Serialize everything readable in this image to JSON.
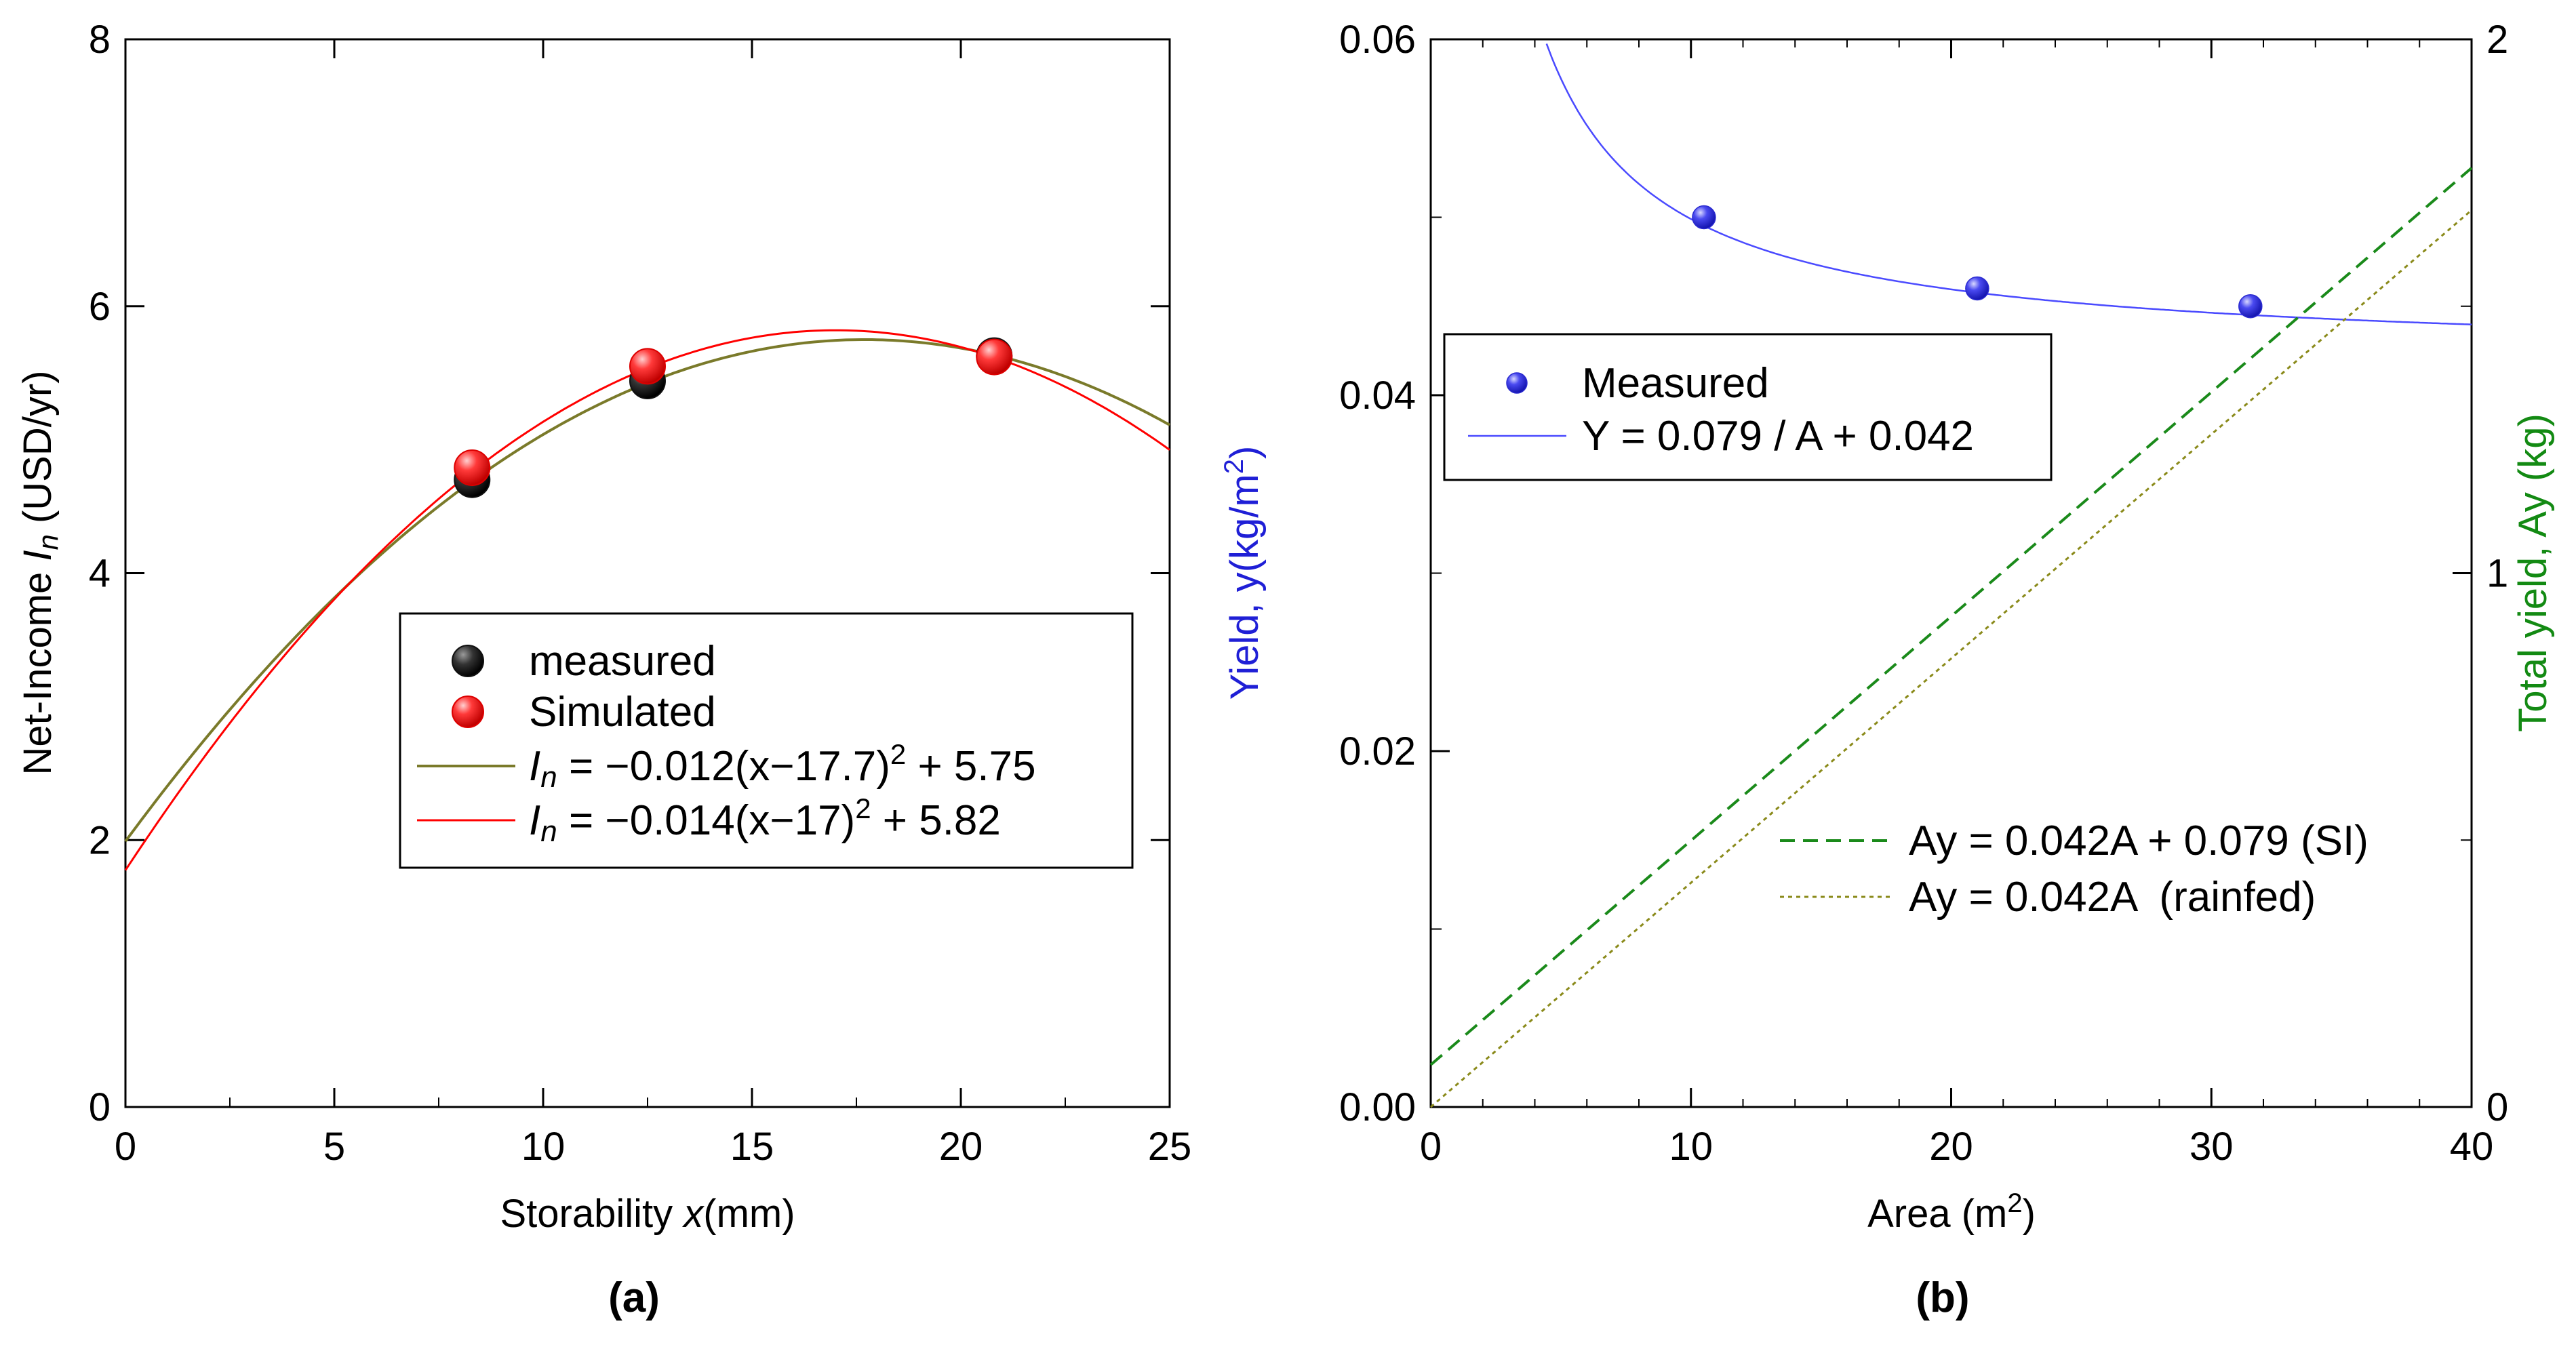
{
  "chart_data": [
    {
      "type": "scatter",
      "caption": "(a)",
      "xlabel_prefix": "Storability ",
      "xlabel_var": "x",
      "xlabel_suffix": "(mm)",
      "ylabel_prefix": "Net-Income ",
      "ylabel_var": "I",
      "ylabel_sub": "n",
      "ylabel_suffix": " (USD/yr)",
      "xlim": [
        0,
        25
      ],
      "ylim": [
        0,
        8
      ],
      "xticks": [
        0,
        5,
        10,
        15,
        20,
        25
      ],
      "yticks": [
        0,
        2,
        4,
        6,
        8
      ],
      "series": [
        {
          "name": "measured",
          "color": "#000000",
          "x": [
            8.3,
            12.5,
            20.8
          ],
          "y": [
            4.7,
            5.44,
            5.63
          ]
        },
        {
          "name": "Simulated",
          "color": "#ff0000",
          "x": [
            8.3,
            12.5,
            20.8
          ],
          "y": [
            4.79,
            5.55,
            5.62
          ]
        }
      ],
      "fits": [
        {
          "color": "#7a7a2a",
          "a": -0.012,
          "h": 17.7,
          "k": 5.75,
          "label_var": "I",
          "label_sub": "n",
          "label_a": " = −0.012(x−17.7)",
          "label_sup": "2",
          "label_b": " + 5.75"
        },
        {
          "color": "#ff0000",
          "a": -0.014,
          "h": 17,
          "k": 5.82,
          "label_var": "I",
          "label_sub": "n",
          "label_a": " = −0.014(x−17)",
          "label_sup": "2",
          "label_b": " + 5.82"
        }
      ]
    },
    {
      "type": "scatter",
      "caption": "(b)",
      "xlabel_prefix": "Area (m",
      "xlabel_sup": "2",
      "xlabel_suffix": ")",
      "ylabel_prefix": "Yield, y(kg/m",
      "ylabel_sup": "2",
      "ylabel_suffix": ")",
      "y2label": "Total yield, Ay (kg)",
      "xlim": [
        0,
        40
      ],
      "ylim": [
        0,
        0.06
      ],
      "y2lim": [
        0,
        2
      ],
      "xticks": [
        0,
        10,
        20,
        30,
        40
      ],
      "yticks": [
        "0.00",
        "0.02",
        "0.04",
        "0.06"
      ],
      "y2ticks": [
        0,
        1,
        2
      ],
      "measured": {
        "name": "Measured",
        "color": "#3535e0",
        "x": [
          10.5,
          21,
          31.5
        ],
        "y": [
          0.05,
          0.046,
          0.045
        ]
      },
      "fit": {
        "label": "Y = 0.079 / A + 0.042",
        "color": "#4a4aff",
        "a": 0.079,
        "b": 0.042
      },
      "lines": [
        {
          "label": "Ay = 0.042A + 0.079 (SI)",
          "color": "#1a8a1a",
          "slope": 0.042,
          "intercept": 0.079,
          "dash": "22,12"
        },
        {
          "label": "Ay = 0.042A  (rainfed)",
          "color": "#8a8a1a",
          "slope": 0.042,
          "intercept": 0,
          "dash": "6,6"
        }
      ],
      "colors": {
        "left_axis": "#1f1fd6",
        "right_axis": "#138a13"
      }
    }
  ]
}
